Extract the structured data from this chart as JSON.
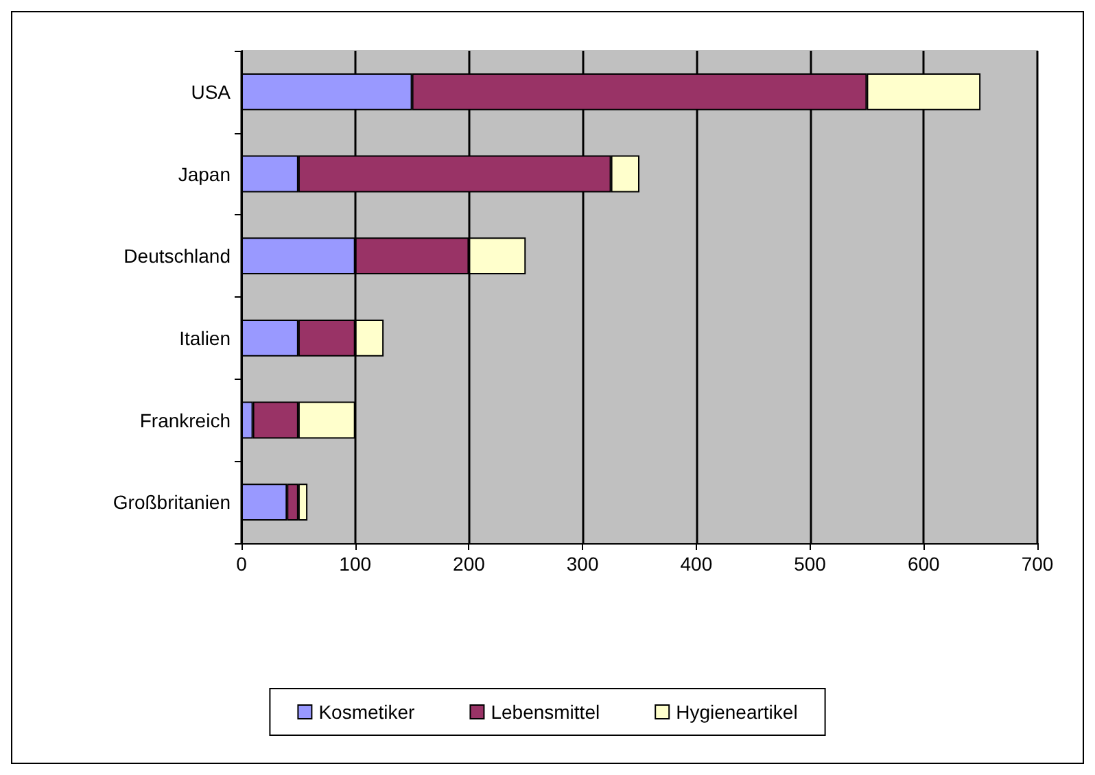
{
  "chart_data": {
    "type": "bar",
    "orientation": "horizontal",
    "stacked": true,
    "categories": [
      "USA",
      "Japan",
      "Deutschland",
      "Italien",
      "Frankreich",
      "Großbritanien"
    ],
    "series": [
      {
        "name": "Kosmetiker",
        "color": "#9999ff",
        "values": [
          150,
          50,
          100,
          50,
          10,
          40
        ]
      },
      {
        "name": "Lebensmittel",
        "color": "#993366",
        "values": [
          400,
          275,
          100,
          50,
          40,
          10
        ]
      },
      {
        "name": "Hygieneartikel",
        "color": "#ffffcc",
        "values": [
          100,
          25,
          50,
          25,
          50,
          8
        ]
      }
    ],
    "xlim": [
      0,
      700
    ],
    "xticks": [
      0,
      100,
      200,
      300,
      400,
      500,
      600,
      700
    ],
    "grid": "x",
    "legend": "bottom"
  }
}
